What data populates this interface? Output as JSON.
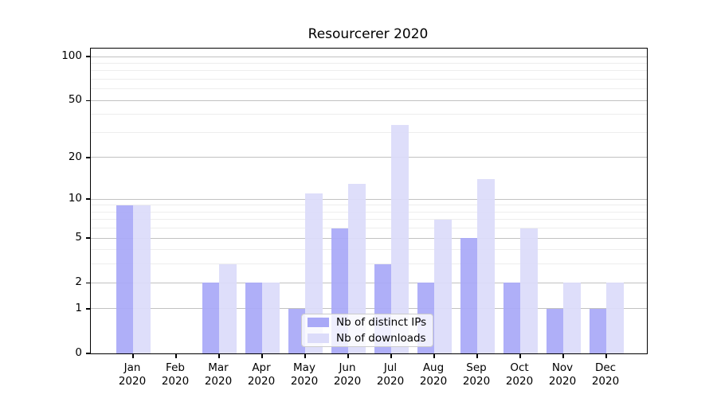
{
  "title": "Resourcerer 2020",
  "chart_data": {
    "type": "bar",
    "title": "Resourcerer 2020",
    "xlabel": "",
    "ylabel": "",
    "scale": "log1p",
    "ylim": [
      0,
      113
    ],
    "grid": true,
    "legend_position": "lower center",
    "categories": [
      "Jan",
      "Feb",
      "Mar",
      "Apr",
      "May",
      "Jun",
      "Jul",
      "Aug",
      "Sep",
      "Oct",
      "Nov",
      "Dec"
    ],
    "xtick_year": "2020",
    "yticks": [
      0,
      1,
      2,
      5,
      10,
      20,
      50,
      100
    ],
    "minor_gridlines": [
      3,
      4,
      6,
      7,
      8,
      9,
      30,
      40,
      60,
      70,
      80,
      90
    ],
    "series": [
      {
        "name": "Nb of distinct IPs",
        "color": "#a9a9f7",
        "values": [
          9,
          0,
          2,
          2,
          1,
          6,
          3,
          2,
          5,
          2,
          1,
          1
        ]
      },
      {
        "name": "Nb of downloads",
        "color": "#dcdcfa",
        "values": [
          9,
          0,
          3,
          2,
          11,
          13,
          34,
          7,
          14,
          6,
          2,
          2
        ]
      }
    ]
  },
  "colors": {
    "background": "#ffffff",
    "major_grid": "#c2c2c2",
    "minor_grid": "#ededed",
    "spine": "#000000",
    "text": "#000000",
    "legend_border": "#cccccc"
  }
}
